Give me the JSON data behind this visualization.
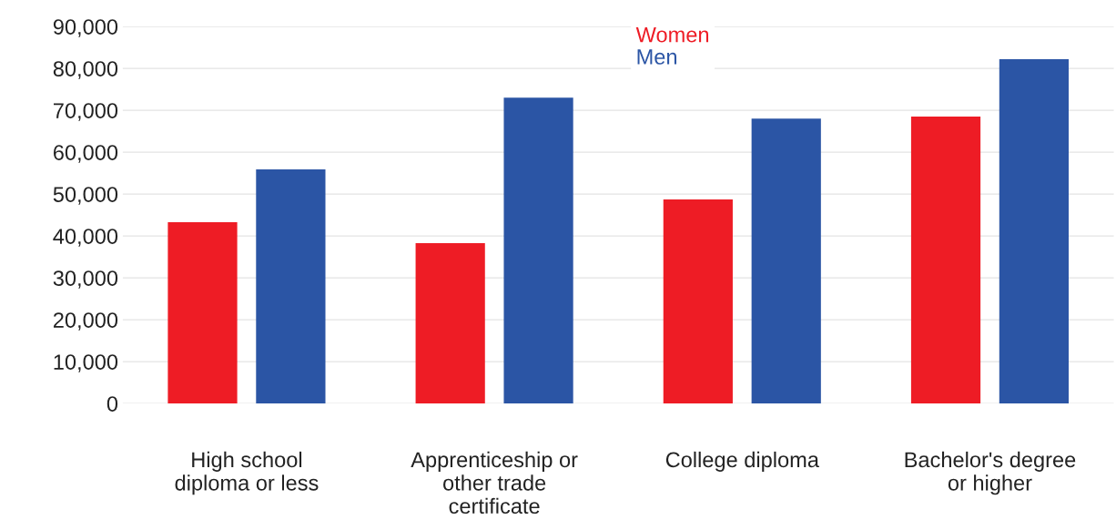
{
  "chart_data": {
    "type": "bar",
    "categories": [
      "High school\ndiploma or less",
      "Apprenticeship or\nother trade\ncertificate",
      "College diploma",
      "Bachelor's degree\nor higher"
    ],
    "series": [
      {
        "name": "Women",
        "color": "#ee1c25",
        "values": [
          43300,
          38300,
          48700,
          68500
        ]
      },
      {
        "name": "Men",
        "color": "#2b55a5",
        "values": [
          55900,
          73000,
          68000,
          82200
        ]
      }
    ],
    "ylim": [
      0,
      90000
    ],
    "yticks": [
      {
        "value": 0,
        "label": "0"
      },
      {
        "value": 10000,
        "label": "10,000"
      },
      {
        "value": 20000,
        "label": "20,000"
      },
      {
        "value": 30000,
        "label": "30,000"
      },
      {
        "value": 40000,
        "label": "40,000"
      },
      {
        "value": 50000,
        "label": "50,000"
      },
      {
        "value": 60000,
        "label": "60,000"
      },
      {
        "value": 70000,
        "label": "70,000"
      },
      {
        "value": 80000,
        "label": "80,000"
      },
      {
        "value": 90000,
        "label": "90,000"
      }
    ],
    "grid": "y",
    "legend": "top"
  }
}
